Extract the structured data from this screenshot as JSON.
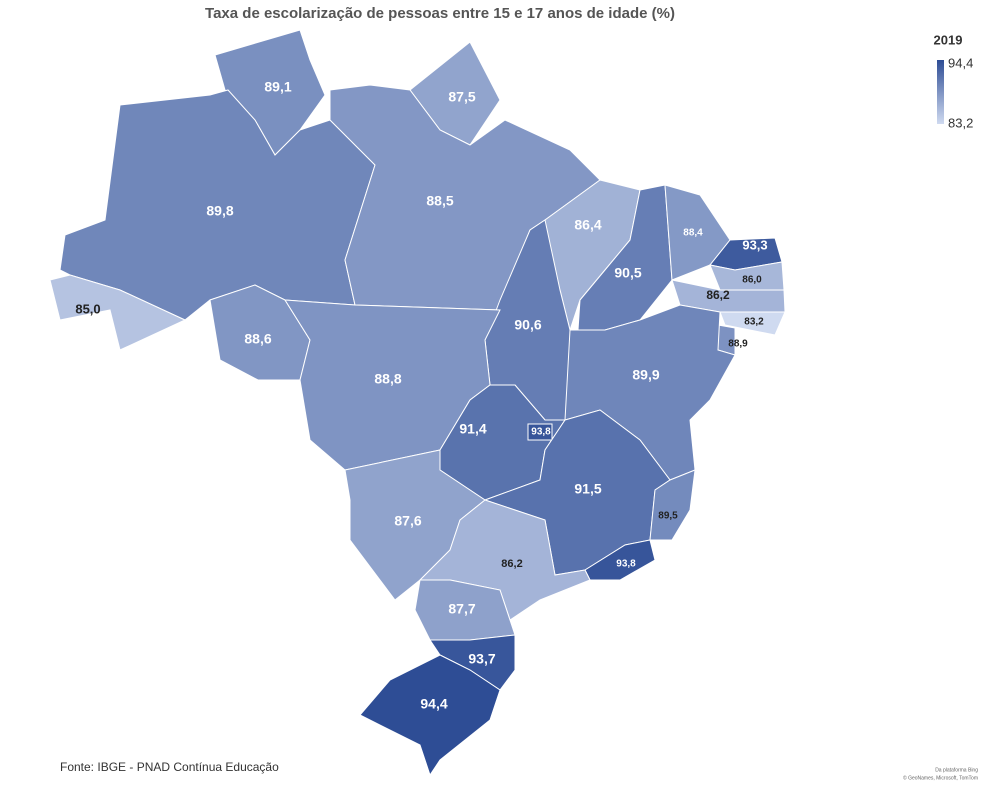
{
  "chart_data": {
    "type": "map",
    "title": "Taxa de escolarização de pessoas entre 15 e 17 anos de idade (%)",
    "legend": {
      "title": "2019",
      "range": [
        {
          "value": 83.2,
          "label": "83,2"
        },
        {
          "value": 94.4,
          "label": "94,4"
        }
      ],
      "colors": [
        "#cfdaf0",
        "#2e4d95"
      ]
    },
    "values": [
      89.1,
      87.5,
      89.8,
      88.5,
      86.4,
      90.5,
      88.4,
      93.3,
      86.0,
      86.2,
      83.2,
      88.9,
      89.9,
      90.6,
      85.0,
      88.6,
      88.8,
      91.4,
      93.8,
      91.5,
      89.5,
      93.8,
      87.6,
      86.2,
      87.7,
      93.7,
      94.4
    ],
    "value_labels": [
      "89,1",
      "87,5",
      "89,8",
      "88,5",
      "86,4",
      "90,5",
      "88,4",
      "93,3",
      "86,0",
      "86,2",
      "83,2",
      "88,9",
      "89,9",
      "90,6",
      "85,0",
      "88,6",
      "88,8",
      "91,4",
      "93,8",
      "91,5",
      "89,5",
      "93,8",
      "87,6",
      "86,2",
      "87,7",
      "93,7",
      "94,4"
    ],
    "source": "Fonte: IBGE - PNAD Contínua Educação",
    "attribution": [
      "Da plataforma Bing",
      "© GeoNames, Microsoft, TomTom"
    ]
  }
}
